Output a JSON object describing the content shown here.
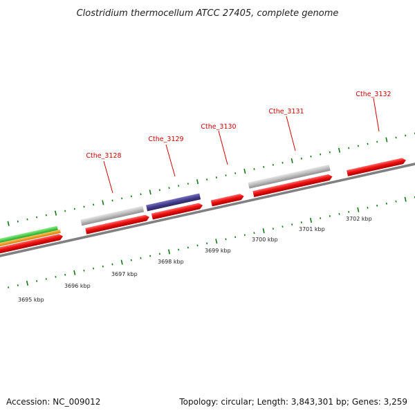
{
  "title": "Clostridium thermocellum ATCC 27405, complete genome",
  "footer": {
    "accession": "Accession: NC_009012",
    "topology": "Topology: circular; Length: 3,843,301 bp; Genes: 3,259"
  },
  "scale_labels": [
    "3695 kbp",
    "3696 kbp",
    "3697 kbp",
    "3698 kbp",
    "3699 kbp",
    "3700 kbp",
    "3701 kbp",
    "3702 kbp"
  ],
  "gene_labels": [
    "Cthe_3128",
    "Cthe_3129",
    "Cthe_3130",
    "Cthe_3131",
    "Cthe_3132"
  ],
  "colors": {
    "backbone": "#808080",
    "cds": "#ee1111",
    "feature_grey": "#bbbbbb",
    "feature_purple": "#443d8c",
    "feature_green": "#33cc33",
    "feature_orange": "#ff9900",
    "tick": "#117711",
    "gene_label": "#d40000"
  }
}
